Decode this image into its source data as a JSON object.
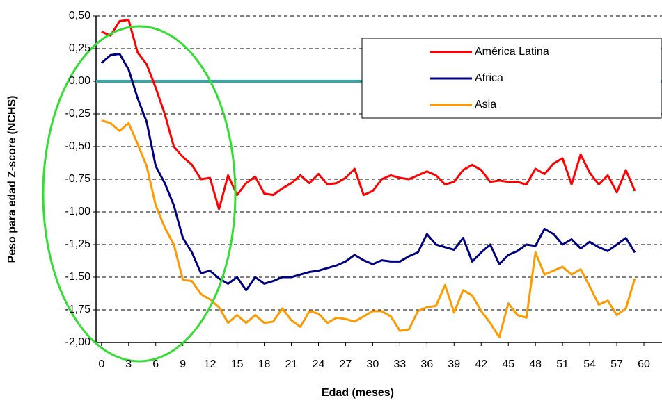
{
  "chart_data": {
    "type": "line",
    "xlabel": "Edad (meses)",
    "ylabel": "Peso para edad Z-score (NCHS)",
    "x": [
      0,
      1,
      2,
      3,
      4,
      5,
      6,
      7,
      8,
      9,
      10,
      11,
      12,
      13,
      14,
      15,
      16,
      17,
      18,
      19,
      20,
      21,
      22,
      23,
      24,
      25,
      26,
      27,
      28,
      29,
      30,
      31,
      32,
      33,
      34,
      35,
      36,
      37,
      38,
      39,
      40,
      41,
      42,
      43,
      44,
      45,
      46,
      47,
      48,
      49,
      50,
      51,
      52,
      53,
      54,
      55,
      56,
      57,
      58,
      59
    ],
    "series": [
      {
        "name": "América Latina",
        "color": "#ff0000",
        "values": [
          0.38,
          0.35,
          0.46,
          0.47,
          0.22,
          0.13,
          -0.05,
          -0.25,
          -0.5,
          -0.58,
          -0.64,
          -0.75,
          -0.74,
          -0.98,
          -0.72,
          -0.87,
          -0.78,
          -0.73,
          -0.86,
          -0.87,
          -0.82,
          -0.78,
          -0.72,
          -0.78,
          -0.71,
          -0.79,
          -0.78,
          -0.74,
          -0.67,
          -0.87,
          -0.84,
          -0.75,
          -0.72,
          -0.74,
          -0.75,
          -0.72,
          -0.69,
          -0.72,
          -0.79,
          -0.77,
          -0.68,
          -0.64,
          -0.68,
          -0.77,
          -0.76,
          -0.77,
          -0.77,
          -0.79,
          -0.67,
          -0.71,
          -0.63,
          -0.59,
          -0.79,
          -0.56,
          -0.7,
          -0.79,
          -0.72,
          -0.85,
          -0.68,
          -0.84
        ]
      },
      {
        "name": "Africa",
        "color": "#000080",
        "values": [
          0.14,
          0.2,
          0.21,
          0.09,
          -0.13,
          -0.31,
          -0.65,
          -0.78,
          -0.95,
          -1.2,
          -1.31,
          -1.47,
          -1.45,
          -1.51,
          -1.55,
          -1.5,
          -1.6,
          -1.5,
          -1.55,
          -1.53,
          -1.5,
          -1.5,
          -1.48,
          -1.46,
          -1.45,
          -1.43,
          -1.41,
          -1.38,
          -1.33,
          -1.37,
          -1.4,
          -1.37,
          -1.38,
          -1.38,
          -1.34,
          -1.31,
          -1.17,
          -1.25,
          -1.27,
          -1.29,
          -1.2,
          -1.38,
          -1.31,
          -1.25,
          -1.4,
          -1.33,
          -1.3,
          -1.25,
          -1.26,
          -1.13,
          -1.17,
          -1.25,
          -1.21,
          -1.28,
          -1.23,
          -1.27,
          -1.3,
          -1.25,
          -1.2,
          -1.31
        ]
      },
      {
        "name": "Asia",
        "color": "#ff9900",
        "values": [
          -0.3,
          -0.32,
          -0.38,
          -0.32,
          -0.48,
          -0.65,
          -0.95,
          -1.12,
          -1.25,
          -1.52,
          -1.53,
          -1.63,
          -1.67,
          -1.73,
          -1.85,
          -1.79,
          -1.85,
          -1.79,
          -1.85,
          -1.84,
          -1.74,
          -1.83,
          -1.88,
          -1.76,
          -1.78,
          -1.85,
          -1.81,
          -1.82,
          -1.84,
          -1.8,
          -1.76,
          -1.76,
          -1.8,
          -1.91,
          -1.9,
          -1.76,
          -1.73,
          -1.72,
          -1.56,
          -1.77,
          -1.6,
          -1.64,
          -1.76,
          -1.85,
          -1.96,
          -1.7,
          -1.79,
          -1.81,
          -1.31,
          -1.48,
          -1.45,
          -1.42,
          -1.48,
          -1.44,
          -1.57,
          -1.71,
          -1.68,
          -1.79,
          -1.74,
          -1.51
        ]
      }
    ],
    "xlim": [
      -0.6,
      62
    ],
    "xticks": [
      0,
      3,
      6,
      9,
      12,
      15,
      18,
      21,
      24,
      27,
      30,
      33,
      36,
      39,
      42,
      45,
      48,
      51,
      54,
      57,
      60
    ],
    "ylim": [
      -2,
      0.5
    ],
    "yticks": [
      {
        "value": -2,
        "label": "-2,00"
      },
      {
        "value": -1.75,
        "label": "-1,75"
      },
      {
        "value": -1.5,
        "label": "-1,50"
      },
      {
        "value": -1.25,
        "label": "-1,25"
      },
      {
        "value": -1,
        "label": "-1,00"
      },
      {
        "value": -0.75,
        "label": "-0,75"
      },
      {
        "value": -0.5,
        "label": "-0,50"
      },
      {
        "value": -0.25,
        "label": "-0,25"
      },
      {
        "value": 0,
        "label": "0,00"
      },
      {
        "value": 0.25,
        "label": "0,25"
      },
      {
        "value": 0.5,
        "label": "0,50"
      }
    ],
    "grid": true,
    "reference_line": {
      "value": 0,
      "color": "#33a6a6"
    },
    "legend": "top-right"
  }
}
